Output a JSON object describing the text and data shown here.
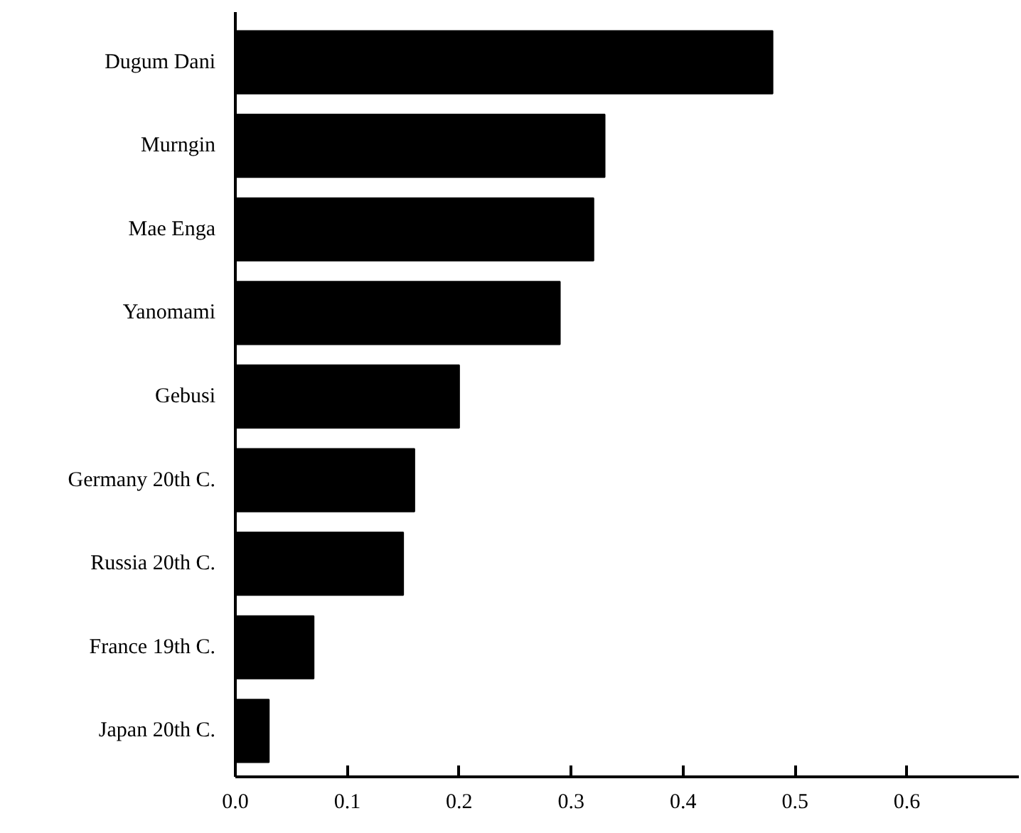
{
  "chart_data": {
    "type": "bar",
    "orientation": "horizontal",
    "categories": [
      "Dugum Dani",
      "Murngin",
      "Mae Enga",
      "Yanomami",
      "Gebusi",
      "Germany 20th C.",
      "Russia 20th C.",
      "France 19th C.",
      "Japan 20th C."
    ],
    "values": [
      0.48,
      0.33,
      0.32,
      0.29,
      0.2,
      0.16,
      0.15,
      0.07,
      0.03
    ],
    "color": "#000000",
    "xlim": [
      0,
      0.7
    ],
    "xticks": [
      {
        "value": 0,
        "label": "0.0"
      },
      0.1,
      0.2,
      0.3,
      0.4,
      0.5,
      0.6
    ],
    "grid": false
  }
}
